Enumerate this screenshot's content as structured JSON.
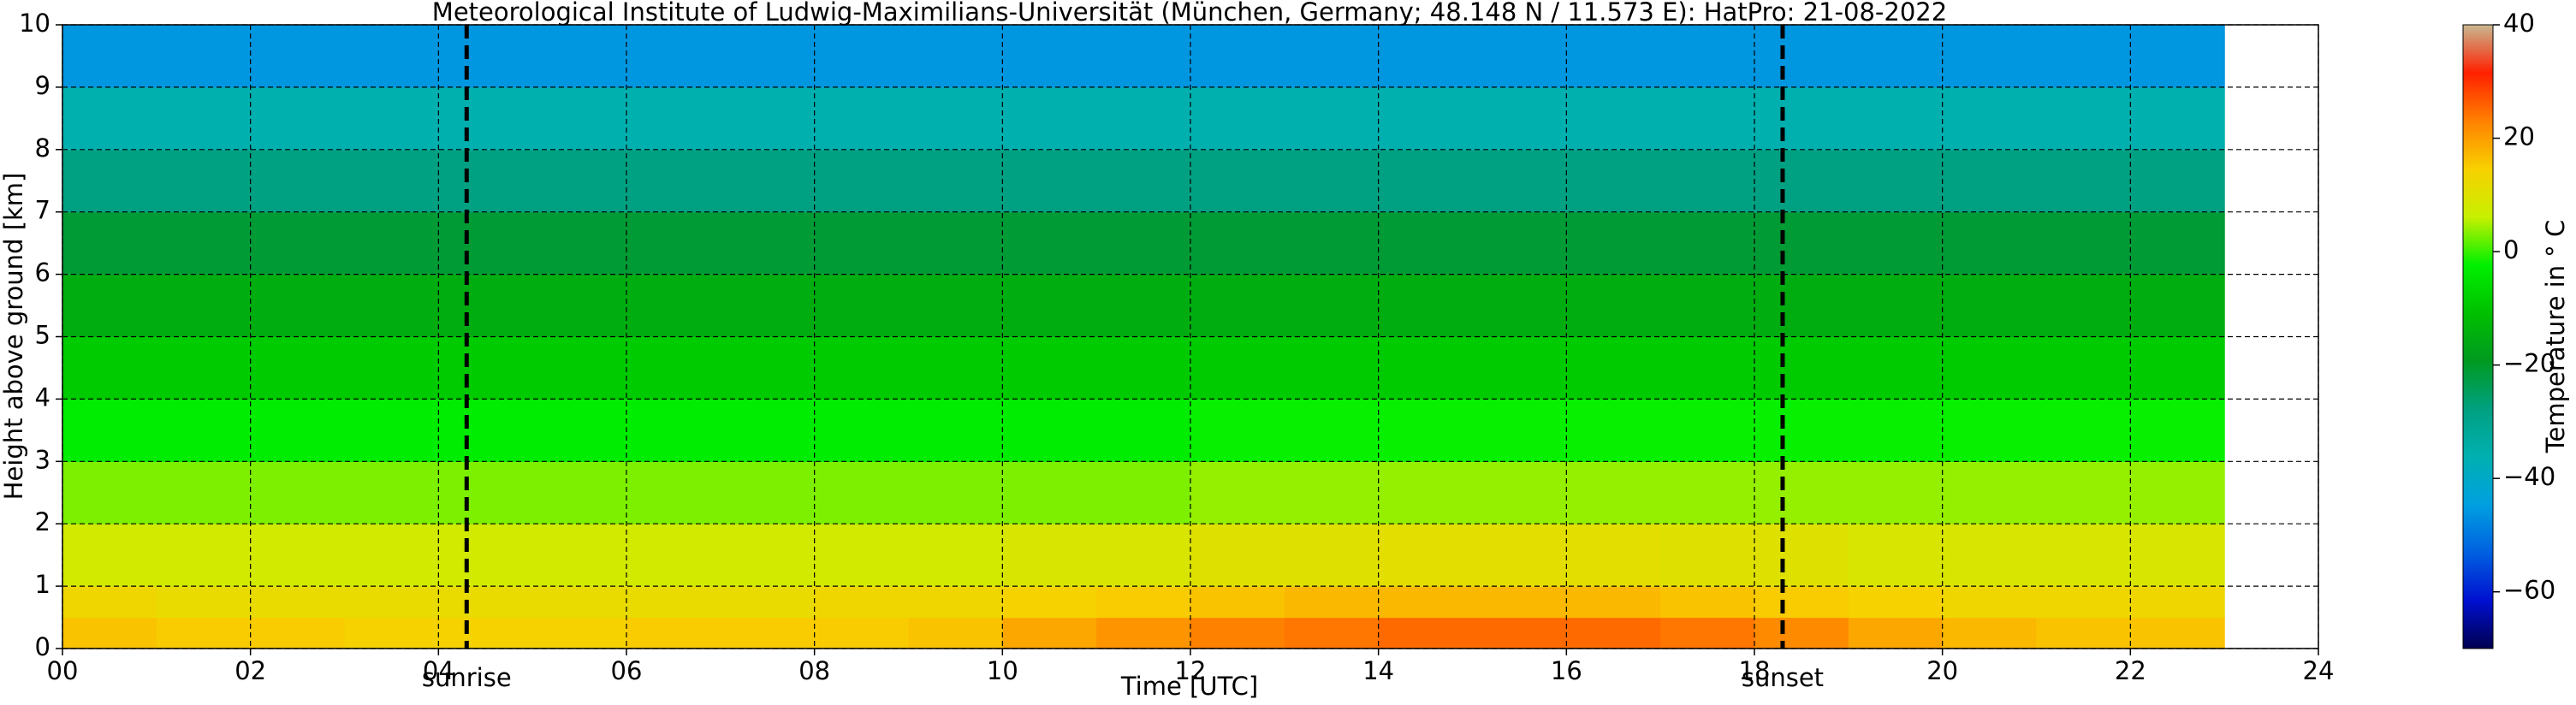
{
  "chart_data": {
    "type": "heatmap",
    "title": "Meteorological Institute of Ludwig-Maximilians-Universität (München, Germany; 48.148 N / 11.573 E):    HatPro: 21-08-2022",
    "xlabel": "Time [UTC]",
    "ylabel": "Height above ground [km]",
    "xlim": [
      0,
      24
    ],
    "xticks": [
      {
        "value": 0,
        "label": "00"
      },
      {
        "value": 2,
        "label": "02"
      },
      {
        "value": 4,
        "label": "04"
      },
      {
        "value": 6,
        "label": "06"
      },
      {
        "value": 8,
        "label": "08"
      },
      10,
      12,
      14,
      16,
      18,
      20,
      22,
      24
    ],
    "ylim": [
      0,
      10
    ],
    "yticks": [
      0,
      1,
      2,
      3,
      4,
      5,
      6,
      7,
      8,
      9,
      10
    ],
    "grid": true,
    "annotations": [
      {
        "x": 4.3,
        "label": "sunrise"
      },
      {
        "x": 18.3,
        "label": "sunset"
      }
    ],
    "x_edges": [
      0,
      1,
      2,
      3,
      4,
      5,
      6,
      7,
      8,
      9,
      10,
      11,
      12,
      13,
      14,
      15,
      16,
      17,
      18,
      19,
      20,
      21,
      22,
      23
    ],
    "y_edges": [
      0,
      0.5,
      1,
      2,
      3,
      4,
      5,
      6,
      7,
      8,
      9,
      10
    ],
    "z": [
      [
        16,
        15,
        15,
        14,
        14,
        14,
        15,
        15,
        15,
        16,
        19,
        21,
        23,
        24,
        25,
        25,
        25,
        24,
        22,
        19,
        17,
        16,
        16
      ],
      [
        13,
        12,
        12,
        12,
        12,
        12,
        12,
        12,
        13,
        13,
        14,
        15,
        16,
        17,
        17,
        17,
        17,
        16,
        15,
        14,
        13,
        13,
        13
      ],
      [
        8,
        8,
        8,
        8,
        8,
        8,
        8,
        8,
        8,
        8,
        9,
        9,
        10,
        10,
        11,
        11,
        11,
        10,
        10,
        9,
        9,
        9,
        9
      ],
      [
        3,
        3,
        3,
        3,
        3,
        3,
        3,
        3,
        3,
        3,
        3,
        3,
        4,
        4,
        4,
        4,
        4,
        4,
        4,
        4,
        4,
        4,
        4
      ],
      [
        -3,
        -3,
        -3,
        -3,
        -3,
        -3,
        -3,
        -3,
        -3,
        -3,
        -3,
        -3,
        -2,
        -2,
        -2,
        -2,
        -2,
        -2,
        -2,
        -2,
        -2,
        -2,
        -2
      ],
      [
        -9,
        -9,
        -9,
        -9,
        -9,
        -9,
        -9,
        -9,
        -9,
        -9,
        -9,
        -9,
        -9,
        -9,
        -9,
        -9,
        -9,
        -9,
        -9,
        -9,
        -9,
        -9,
        -9
      ],
      [
        -15,
        -15,
        -15,
        -15,
        -15,
        -15,
        -15,
        -15,
        -15,
        -15,
        -15,
        -15,
        -15,
        -15,
        -15,
        -15,
        -15,
        -15,
        -15,
        -15,
        -15,
        -15,
        -15
      ],
      [
        -21,
        -21,
        -21,
        -21,
        -21,
        -21,
        -21,
        -21,
        -21,
        -21,
        -21,
        -21,
        -21,
        -21,
        -21,
        -21,
        -21,
        -21,
        -21,
        -21,
        -21,
        -21,
        -21
      ],
      [
        -28,
        -28,
        -28,
        -28,
        -28,
        -28,
        -28,
        -28,
        -28,
        -28,
        -28,
        -28,
        -28,
        -28,
        -28,
        -28,
        -28,
        -28,
        -28,
        -28,
        -28,
        -28,
        -28
      ],
      [
        -36,
        -36,
        -36,
        -36,
        -36,
        -36,
        -36,
        -36,
        -36,
        -36,
        -36,
        -36,
        -36,
        -36,
        -36,
        -36,
        -36,
        -36,
        -36,
        -36,
        -36,
        -36,
        -36
      ],
      [
        -46,
        -46,
        -46,
        -46,
        -46,
        -46,
        -46,
        -46,
        -46,
        -46,
        -46,
        -46,
        -46,
        -46,
        -46,
        -46,
        -46,
        -46,
        -46,
        -46,
        -46,
        -46,
        -46
      ]
    ],
    "colorbar_label": "Temperature in ° C",
    "clim": [
      -70,
      40
    ],
    "cticks": [
      {
        "value": -60,
        "label": "−60"
      },
      {
        "value": -40,
        "label": "−40"
      },
      {
        "value": -20,
        "label": "−20"
      },
      0,
      20,
      40
    ],
    "colormap": [
      "#000050",
      "#0010d0",
      "#0060e0",
      "#00a0e0",
      "#00b0b0",
      "#00a080",
      "#009a20",
      "#00c000",
      "#00f000",
      "#c8f000",
      "#f8d000",
      "#ff8000",
      "#ff2000",
      "#c8b890"
    ]
  }
}
